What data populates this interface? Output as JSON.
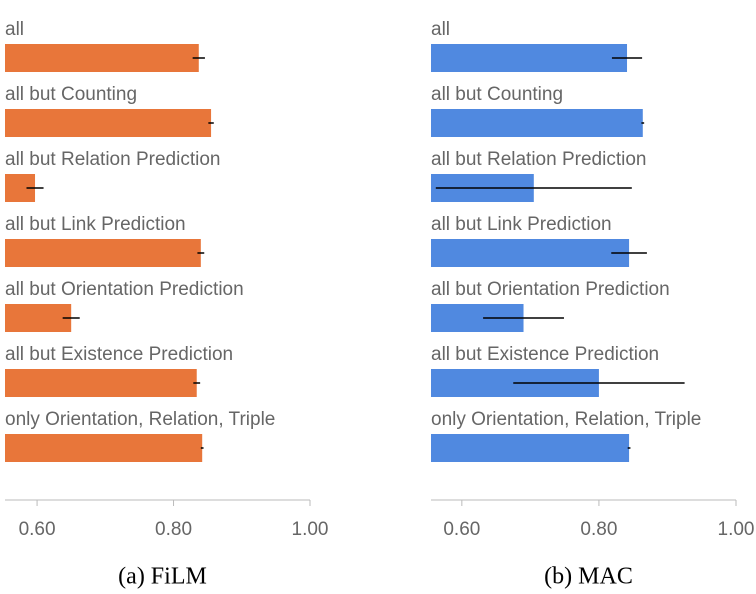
{
  "chart_data": [
    {
      "type": "bar",
      "caption": "(a) FiLM",
      "color": "#e8763a",
      "categories": [
        "all",
        "all but Counting",
        "all but Relation Prediction",
        "all but Link Prediction",
        "all but Orientation Prediction",
        "all but Existence Prediction",
        "only Orientation, Relation, Triple"
      ],
      "values": [
        0.837,
        0.855,
        0.597,
        0.84,
        0.65,
        0.834,
        0.842
      ],
      "errors": [
        0.009,
        0.004,
        0.0125,
        0.005,
        0.0125,
        0.005,
        0.002
      ],
      "xlim": [
        0.553,
        1.0
      ],
      "xticks": [
        {
          "value": 0.6,
          "label": "0.60"
        },
        {
          "value": 0.8,
          "label": "0.80"
        },
        {
          "value": 1.0,
          "label": "1.00"
        }
      ]
    },
    {
      "type": "bar",
      "caption": "(b) MAC",
      "color": "#5089e0",
      "categories": [
        "all",
        "all but Counting",
        "all but Relation Prediction",
        "all but Link Prediction",
        "all but Orientation Prediction",
        "all but Existence Prediction",
        "only Orientation, Relation, Triple"
      ],
      "values": [
        0.841,
        0.864,
        0.705,
        0.844,
        0.69,
        0.8,
        0.844
      ],
      "errors": [
        0.022,
        0.002,
        0.143,
        0.026,
        0.059,
        0.125,
        0.002
      ],
      "xlim": [
        0.555,
        1.0
      ],
      "xticks": [
        {
          "value": 0.6,
          "label": "0.60"
        },
        {
          "value": 0.8,
          "label": "0.80"
        },
        {
          "value": 1.0,
          "label": "1.00"
        }
      ]
    }
  ]
}
